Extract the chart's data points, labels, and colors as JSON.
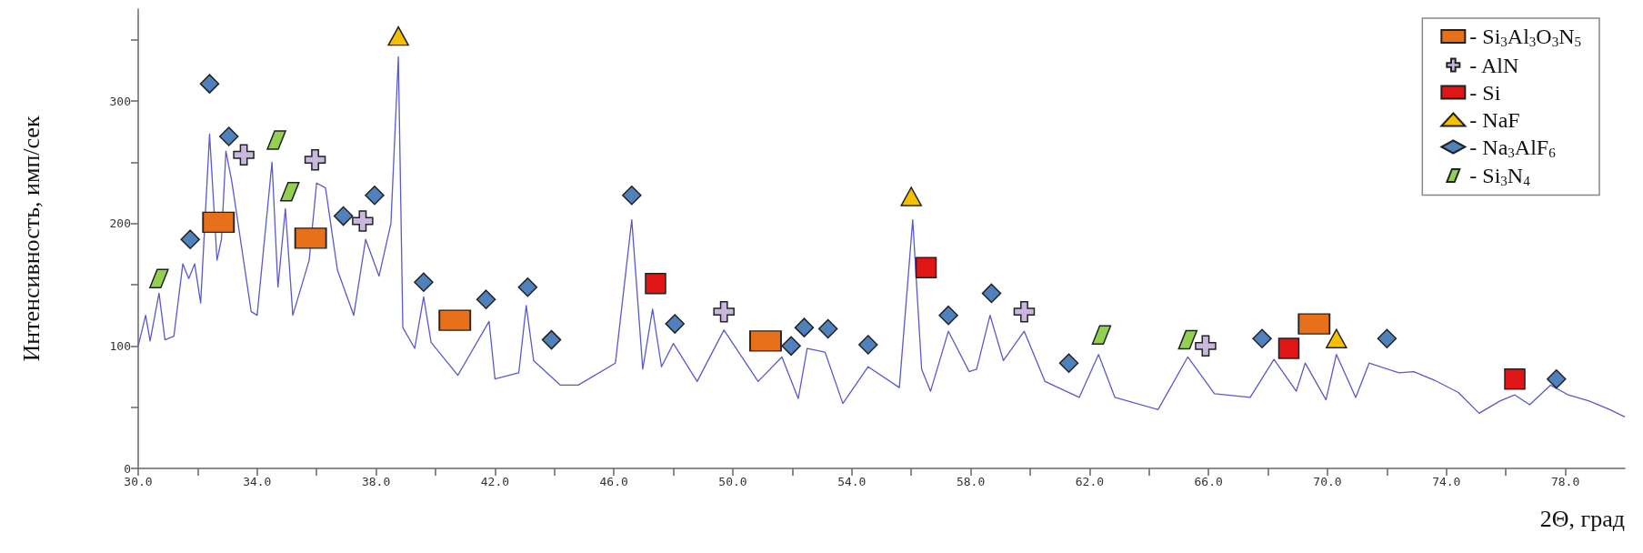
{
  "chart_data": {
    "type": "line",
    "xlabel": "2Θ, град",
    "ylabel": "Интенсивность, имп/сек",
    "xlim": [
      30,
      80
    ],
    "ylim": [
      0,
      375
    ],
    "xticks": [
      {
        "value": 30,
        "label": "30.0"
      },
      {
        "value": 32,
        "label": null
      },
      {
        "value": 34,
        "label": "34.0"
      },
      {
        "value": 36,
        "label": null
      },
      {
        "value": 38,
        "label": "38.0"
      },
      {
        "value": 40,
        "label": null
      },
      {
        "value": 42,
        "label": "42.0"
      },
      {
        "value": 44,
        "label": null
      },
      {
        "value": 46,
        "label": "46.0"
      },
      {
        "value": 48,
        "label": null
      },
      {
        "value": 50,
        "label": "50.0"
      },
      {
        "value": 52,
        "label": null
      },
      {
        "value": 54,
        "label": "54.0"
      },
      {
        "value": 56,
        "label": null
      },
      {
        "value": 58,
        "label": "58.0"
      },
      {
        "value": 60,
        "label": null
      },
      {
        "value": 62,
        "label": "62.0"
      },
      {
        "value": 64,
        "label": null
      },
      {
        "value": 66,
        "label": "66.0"
      },
      {
        "value": 68,
        "label": null
      },
      {
        "value": 70,
        "label": "70.0"
      },
      {
        "value": 72,
        "label": null
      },
      {
        "value": 74,
        "label": "74.0"
      },
      {
        "value": 76,
        "label": null
      },
      {
        "value": 78,
        "label": "78.0"
      }
    ],
    "yticks": [
      0,
      {
        "value": 50,
        "label": null
      },
      100,
      {
        "value": 150,
        "label": null
      },
      200,
      {
        "value": 250,
        "label": null
      },
      300,
      {
        "value": 350,
        "label": null
      }
    ],
    "grid": false,
    "legend": "top right",
    "series": [
      {
        "marker": "none",
        "color": "#5a5ac8",
        "x": [
          30.0,
          30.25,
          30.4,
          30.7,
          30.9,
          31.2,
          31.5,
          31.7,
          31.9,
          32.1,
          32.4,
          32.65,
          32.8,
          32.95,
          33.15,
          33.8,
          34.0,
          34.5,
          34.7,
          34.95,
          35.2,
          35.75,
          36.0,
          36.3,
          36.7,
          37.25,
          37.65,
          38.1,
          38.5,
          38.75,
          38.9,
          39.3,
          39.6,
          39.85,
          40.75,
          41.8,
          42.0,
          42.8,
          43.05,
          43.3,
          44.2,
          44.8,
          46.05,
          46.6,
          46.97,
          47.3,
          47.6,
          48.0,
          48.8,
          49.7,
          50.85,
          51.65,
          52.2,
          52.5,
          53.1,
          53.7,
          54.55,
          55.6,
          56.05,
          56.35,
          56.65,
          57.25,
          57.95,
          58.2,
          58.65,
          59.1,
          59.8,
          60.5,
          61.65,
          62.3,
          62.85,
          64.3,
          65.3,
          66.2,
          67.4,
          68.2,
          68.95,
          69.25,
          69.95,
          70.3,
          70.95,
          71.4,
          72.4,
          72.9,
          73.6,
          74.4,
          75.1,
          75.8,
          76.3,
          76.8,
          77.5,
          78.1,
          78.8,
          79.5,
          80.0
        ],
        "values": [
          100,
          125,
          104,
          143,
          105,
          108,
          167,
          155,
          167,
          135,
          273,
          170,
          187,
          259,
          234,
          128,
          125,
          250,
          148,
          212,
          125,
          170,
          233,
          229,
          162,
          125,
          187,
          157,
          200,
          336,
          115,
          98,
          140,
          103,
          76,
          120,
          73,
          78,
          133,
          88,
          68,
          68,
          86,
          203,
          81,
          130,
          83,
          102,
          71,
          113,
          71,
          91,
          57,
          98,
          95,
          53,
          83,
          66,
          203,
          81,
          63,
          112,
          79,
          81,
          125,
          88,
          112,
          71,
          58,
          93,
          58,
          48,
          91,
          61,
          58,
          89,
          63,
          86,
          56,
          93,
          58,
          86,
          78,
          79,
          72,
          62,
          45,
          55,
          60,
          52,
          68,
          60,
          55,
          48,
          42
        ]
      },
      {
        "type": "scatter",
        "name": "- Si$_{3}$Al$_{3}$O$_{3}$N$_{5}$",
        "marker": "rect",
        "color": "#e8701a",
        "x": [
          32.7,
          35.8,
          40.65,
          51.1,
          69.55
        ],
        "values": [
          201,
          188,
          121,
          104,
          118
        ]
      },
      {
        "type": "scatter",
        "name": "- AlN",
        "marker": "cross",
        "color": "#c9b8dd",
        "x": [
          33.55,
          35.95,
          37.55,
          49.7,
          59.8,
          65.9
        ],
        "values": [
          256,
          252,
          202,
          128,
          128,
          100
        ]
      },
      {
        "type": "scatter",
        "name": "- Si",
        "marker": "square",
        "color": "#e01515",
        "x": [
          47.4,
          56.5,
          68.7,
          76.3
        ],
        "values": [
          151,
          164,
          98,
          73
        ]
      },
      {
        "type": "scatter",
        "name": "- NaF",
        "marker": "triangle",
        "color": "#f5c000",
        "x": [
          38.75,
          56.0,
          70.3
        ],
        "values": [
          353,
          222,
          106
        ]
      },
      {
        "type": "scatter",
        "name": "- Na$_{3}$AlF$_{6}$",
        "marker": "diamond",
        "color": "#4f81bd",
        "x": [
          32.4,
          33.05,
          31.75,
          36.9,
          37.95,
          39.6,
          41.7,
          43.1,
          43.9,
          46.6,
          48.05,
          51.96,
          52.4,
          53.2,
          54.55,
          57.25,
          58.7,
          61.3,
          67.8,
          72.0,
          77.7
        ],
        "values": [
          314,
          271,
          187,
          206,
          223,
          152,
          138,
          148,
          105,
          223,
          118,
          100,
          115,
          114,
          101,
          125,
          143,
          86,
          106,
          106,
          73
        ]
      },
      {
        "type": "scatter",
        "name": "- Si$_{3}$N$_{4}$",
        "color": "#92d050",
        "x": [
          30.7,
          34.65,
          35.1,
          62.4,
          65.3
        ],
        "values": [
          155,
          268,
          226,
          109,
          105
        ]
      }
    ]
  }
}
